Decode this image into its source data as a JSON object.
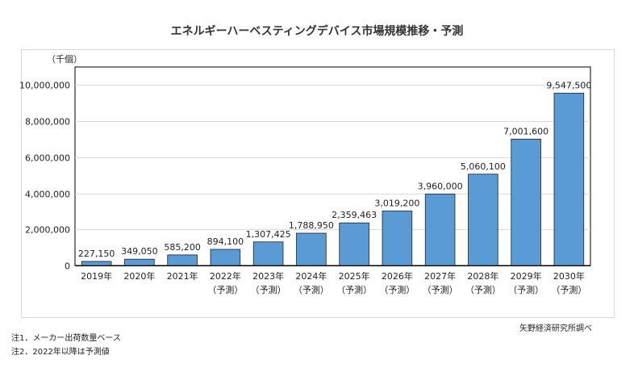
{
  "title": "エネルギーハーベスティングデバイス市場規模推移・予測",
  "unit_label": "（千個）",
  "notes": [
    "注1．メーカー出荷数量ベース",
    "注2．2022年以降は予測値"
  ],
  "source": "矢野経済研究所調べ",
  "colors": {
    "bar": "#5b9bd5",
    "bar_stroke": "#1f1f1f",
    "grid": "#d9d9d9",
    "axis": "#000000"
  },
  "chart_data": {
    "type": "bar",
    "title": "エネルギーハーベスティングデバイス市場規模推移・予測",
    "ylabel": "（千個）",
    "xlabel": "",
    "categories": [
      "2019年",
      "2020年",
      "2021年",
      "2022年",
      "2023年",
      "2024年",
      "2025年",
      "2026年",
      "2027年",
      "2028年",
      "2029年",
      "2030年"
    ],
    "category_sublabels": [
      "",
      "",
      "",
      "（予測）",
      "（予測）",
      "（予測）",
      "（予測）",
      "（予測）",
      "（予測）",
      "（予測）",
      "（予測）",
      "（予測）"
    ],
    "values": [
      227150,
      349050,
      585200,
      894100,
      1307425,
      1788950,
      2359463,
      3019200,
      3960000,
      5060100,
      7001600,
      9547500
    ],
    "data_labels": [
      "227,150",
      "349,050",
      "585,200",
      "894,100",
      "1,307,425",
      "1,788,950",
      "2,359,463",
      "3,019,200",
      "3,960,000",
      "5,060,100",
      "7,001,600",
      "9,547,500"
    ],
    "ylim": [
      0,
      11000000
    ],
    "yticks": [
      0,
      2000000,
      4000000,
      6000000,
      8000000,
      10000000
    ],
    "ytick_labels": [
      "0",
      "2,000,000",
      "4,000,000",
      "6,000,000",
      "8,000,000",
      "10,000,000"
    ],
    "grid": true,
    "legend": "none"
  }
}
